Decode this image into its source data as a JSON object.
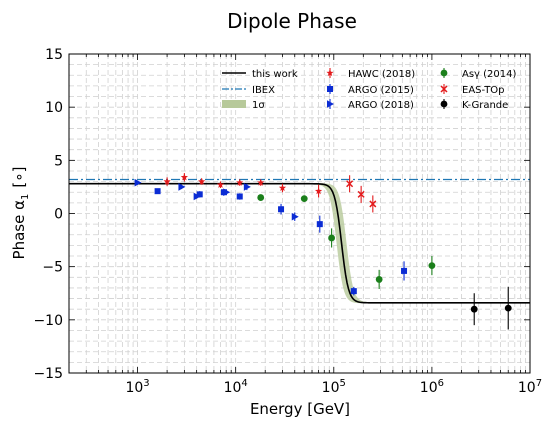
{
  "chart_data": {
    "type": "scatter",
    "title": "Dipole Phase",
    "xlabel": "Energy [GeV]",
    "ylabel": "Phase α",
    "ylabel_sub": "1",
    "ylabel_unit": "[∘]",
    "xscale": "log",
    "xlim": [
      200,
      10000000
    ],
    "ylim": [
      -15,
      15
    ],
    "x_ticks": [
      {
        "value": 1000,
        "base": "10",
        "exp": "3"
      },
      {
        "value": 10000,
        "base": "10",
        "exp": "4"
      },
      {
        "value": 100000,
        "base": "10",
        "exp": "5"
      },
      {
        "value": 1000000,
        "base": "10",
        "exp": "6"
      },
      {
        "value": 10000000,
        "base": "10",
        "exp": "7"
      }
    ],
    "y_ticks": [
      {
        "value": 15,
        "label": "15"
      },
      {
        "value": 10,
        "label": "10"
      },
      {
        "value": 5,
        "label": "5"
      },
      {
        "value": 0,
        "label": "0"
      },
      {
        "value": -5,
        "label": "−5"
      },
      {
        "value": -10,
        "label": "−10"
      },
      {
        "value": -15,
        "label": "−15"
      }
    ],
    "grid": true,
    "legend_position": "top-right",
    "legend": [
      {
        "key": "this_work",
        "label": "this work",
        "kind": "line",
        "color": "#000000"
      },
      {
        "key": "hawc",
        "label": "HAWC (2018)",
        "kind": "marker",
        "color": "#e31a1c",
        "marker": "star"
      },
      {
        "key": "asg",
        "label": "Asγ (2014)",
        "kind": "marker",
        "color": "#1b7f1b",
        "marker": "circle"
      },
      {
        "key": "ibex",
        "label": "IBEX",
        "kind": "dashdot",
        "color": "#1f77b4"
      },
      {
        "key": "argo2015",
        "label": "ARGO (2015)",
        "kind": "marker",
        "color": "#0b2cd4",
        "marker": "square"
      },
      {
        "key": "eastop",
        "label": "EAS-TOp",
        "kind": "marker",
        "color": "#e31a1c",
        "marker": "x"
      },
      {
        "key": "band",
        "label": "1σ",
        "kind": "band",
        "color": "#b7c99a"
      },
      {
        "key": "argo2018",
        "label": "ARGO (2018)",
        "kind": "marker",
        "color": "#0b2cd4",
        "marker": "triangle"
      },
      {
        "key": "kgrande",
        "label": "K-Grande",
        "kind": "marker",
        "color": "#000000",
        "marker": "circle"
      }
    ],
    "ibex_value": 3.2,
    "model_curve": {
      "low_plateau": 2.8,
      "high_plateau": -8.4,
      "transition_energy": 120000,
      "transition_width": 0.035,
      "band_halfwidth": 0.6
    },
    "series": [
      {
        "key": "hawc",
        "points": [
          {
            "x": 2000,
            "y": 3.0,
            "err": 0.4
          },
          {
            "x": 3000,
            "y": 3.4,
            "err": 0.4
          },
          {
            "x": 4500,
            "y": 3.0,
            "err": 0.3
          },
          {
            "x": 7000,
            "y": 2.7,
            "err": 0.3
          },
          {
            "x": 11000,
            "y": 2.9,
            "err": 0.3
          },
          {
            "x": 18000,
            "y": 2.9,
            "err": 0.3
          },
          {
            "x": 30000,
            "y": 2.4,
            "err": 0.4
          },
          {
            "x": 70000,
            "y": 2.1,
            "err": 0.6
          }
        ]
      },
      {
        "key": "eastop",
        "points": [
          {
            "x": 145000,
            "y": 2.8,
            "err": 0.8
          },
          {
            "x": 190000,
            "y": 1.8,
            "err": 0.8
          },
          {
            "x": 250000,
            "y": 0.9,
            "err": 0.8
          }
        ]
      },
      {
        "key": "argo2015",
        "points": [
          {
            "x": 1600,
            "y": 2.1,
            "err": 0.2
          },
          {
            "x": 4300,
            "y": 1.8,
            "err": 0.3
          },
          {
            "x": 7600,
            "y": 2.0,
            "err": 0.3
          },
          {
            "x": 11000,
            "y": 1.6,
            "err": 0.3
          },
          {
            "x": 29000,
            "y": 0.4,
            "err": 0.5
          },
          {
            "x": 72000,
            "y": -1.0,
            "err": 0.8
          },
          {
            "x": 160000,
            "y": -7.3,
            "err": 0.4
          },
          {
            "x": 520000,
            "y": -5.4,
            "err": 0.9
          }
        ]
      },
      {
        "key": "argo2018",
        "points": [
          {
            "x": 1000,
            "y": 2.9,
            "err": 0.2
          },
          {
            "x": 2800,
            "y": 2.5,
            "err": 0.2
          },
          {
            "x": 4000,
            "y": 1.6,
            "err": 0.2
          },
          {
            "x": 8000,
            "y": 2.0,
            "err": 0.2
          },
          {
            "x": 13000,
            "y": 2.5,
            "err": 0.3
          },
          {
            "x": 40000,
            "y": -0.3,
            "err": 0.4
          }
        ]
      },
      {
        "key": "asg",
        "points": [
          {
            "x": 18000,
            "y": 1.5,
            "err": 0.2
          },
          {
            "x": 50000,
            "y": 1.4,
            "err": 0.3
          },
          {
            "x": 95000,
            "y": -2.3,
            "err": 0.9
          },
          {
            "x": 290000,
            "y": -6.2,
            "err": 0.9
          },
          {
            "x": 1000000,
            "y": -4.9,
            "err": 0.9
          }
        ]
      },
      {
        "key": "kgrande",
        "points": [
          {
            "x": 2700000,
            "y": -9.0,
            "err": 1.5
          },
          {
            "x": 6000000,
            "y": -8.9,
            "err": 2.0
          }
        ]
      }
    ]
  }
}
